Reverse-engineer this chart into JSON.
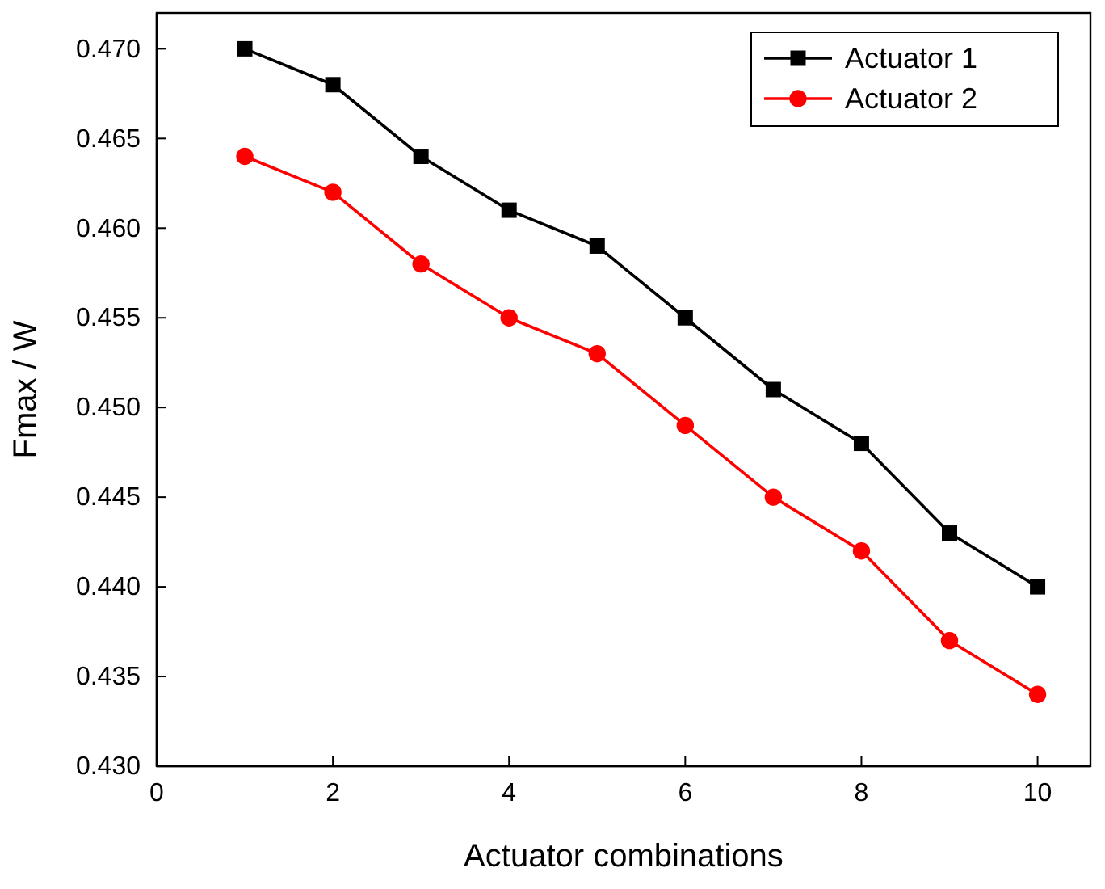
{
  "chart_data": {
    "type": "line",
    "xlabel": "Actuator combinations",
    "ylabel": "Fmax / W",
    "x": [
      1,
      2,
      3,
      4,
      5,
      6,
      7,
      8,
      9,
      10
    ],
    "series": [
      {
        "name": "Actuator 1",
        "color": "#000000",
        "marker": "square",
        "values": [
          0.47,
          0.468,
          0.464,
          0.461,
          0.459,
          0.455,
          0.451,
          0.448,
          0.443,
          0.44
        ]
      },
      {
        "name": "Actuator 2",
        "color": "#ff0000",
        "marker": "circle",
        "values": [
          0.464,
          0.462,
          0.458,
          0.455,
          0.453,
          0.449,
          0.445,
          0.442,
          0.437,
          0.434
        ]
      }
    ],
    "xlim": [
      0,
      10.6
    ],
    "xticks": [
      0,
      2,
      4,
      6,
      8,
      10
    ],
    "ylim": [
      0.43,
      0.472
    ],
    "yticks": [
      {
        "value": 0.43,
        "label": "0.430"
      },
      {
        "value": 0.435,
        "label": "0.435"
      },
      {
        "value": 0.44,
        "label": "0.440"
      },
      {
        "value": 0.445,
        "label": "0.445"
      },
      {
        "value": 0.45,
        "label": "0.450"
      },
      {
        "value": 0.455,
        "label": "0.455"
      },
      {
        "value": 0.46,
        "label": "0.460"
      },
      {
        "value": 0.465,
        "label": "0.465"
      },
      {
        "value": 0.47,
        "label": "0.470"
      }
    ],
    "grid": false,
    "legend": "top right",
    "line_style": "solid"
  }
}
